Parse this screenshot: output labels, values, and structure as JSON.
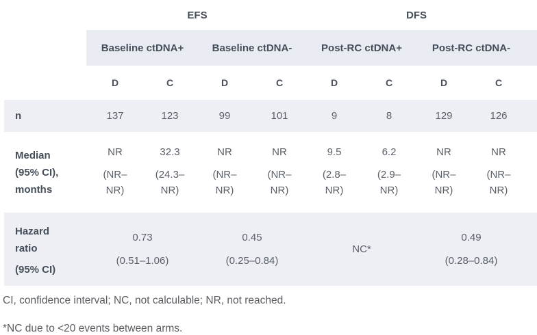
{
  "colors": {
    "band-header": "#e8ebf1",
    "band-row": "#edeff4",
    "text-strong": "#454e59",
    "text-data": "#5a6069",
    "text-foot": "#595d62"
  },
  "table": {
    "super_headers": [
      {
        "label": "EFS"
      },
      {
        "label": "DFS"
      }
    ],
    "group_headers": [
      {
        "label": "Baseline ctDNA+"
      },
      {
        "label": "Baseline ctDNA-"
      },
      {
        "label": "Post-RC ctDNA+"
      },
      {
        "label": "Post-RC ctDNA-"
      }
    ],
    "arm_headers": [
      "D",
      "C",
      "D",
      "C",
      "D",
      "C",
      "D",
      "C"
    ],
    "row_n": {
      "label": "n",
      "values": [
        "137",
        "123",
        "99",
        "101",
        "9",
        "8",
        "129",
        "126"
      ]
    },
    "row_median": {
      "label": "Median\n(95% CI),\nmonths",
      "cells": [
        {
          "value": "NR",
          "ci": "(NR–\nNR)"
        },
        {
          "value": "32.3",
          "ci": "(24.3–\nNR)"
        },
        {
          "value": "NR",
          "ci": "(NR–\nNR)"
        },
        {
          "value": "NR",
          "ci": "(NR–\nNR)"
        },
        {
          "value": "9.5",
          "ci": "(2.8–\nNR)"
        },
        {
          "value": "6.2",
          "ci": "(2.9–\nNR)"
        },
        {
          "value": "NR",
          "ci": "(NR–\nNR)"
        },
        {
          "value": "NR",
          "ci": "(NR–\nNR)"
        }
      ]
    },
    "row_hazard": {
      "label_line1": "Hazard ratio",
      "label_line2": "(95% CI)",
      "cells": [
        {
          "value": "0.73",
          "ci": "(0.51–1.06)"
        },
        {
          "value": "0.45",
          "ci": "(0.25–0.84)"
        },
        {
          "value": "NC*",
          "ci": ""
        },
        {
          "value": "0.49",
          "ci": "(0.28–0.84)"
        }
      ]
    },
    "footnotes": [
      "CI, confidence interval; NC, not calculable; NR, not reached.",
      "*NC due to <20 events between arms."
    ]
  }
}
